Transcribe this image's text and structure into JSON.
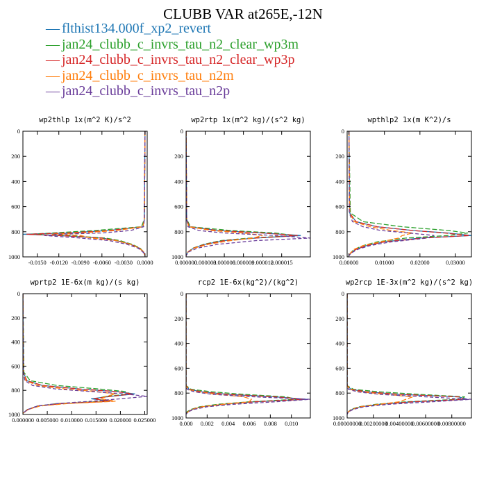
{
  "title": "CLUBB VAR at265E,-12N",
  "legend": [
    {
      "label": "flthist134.000f_xp2_revert",
      "color": "#1f77b4"
    },
    {
      "label": "jan24_clubb_c_invrs_tau_n2_clear_wp3m",
      "color": "#2ca02c"
    },
    {
      "label": "jan24_clubb_c_invrs_tau_n2_clear_wp3p",
      "color": "#d62728"
    },
    {
      "label": "jan24_clubb_c_invrs_tau_n2m",
      "color": "#ff7f0e"
    },
    {
      "label": "jan24_clubb_c_invrs_tau_n2p",
      "color": "#6a3d9a"
    }
  ],
  "chart_data": [
    {
      "type": "line",
      "title": "wp2thlp  1x(m^2 K)/s^2",
      "xlim": [
        -0.017,
        0.0003
      ],
      "ylim": [
        0,
        1000
      ],
      "xticks": [
        -0.015,
        -0.012,
        -0.009,
        -0.006,
        -0.003,
        0.0
      ],
      "xtick_labels": [
        "-0.0150",
        "-0.0120",
        "-0.0090",
        "-0.0060",
        "-0.0030",
        "0.0000"
      ],
      "yticks": [
        0,
        200,
        400,
        600,
        800,
        1000
      ],
      "ytick_labels": [
        "0",
        "200",
        "400",
        "600",
        "800",
        "1000"
      ],
      "y": [
        0,
        700,
        760,
        790,
        810,
        820,
        830,
        850,
        870,
        900,
        930,
        960,
        990
      ],
      "series": [
        {
          "values": [
            0,
            -0.0001,
            -0.0003,
            -0.005,
            -0.011,
            -0.017,
            -0.012,
            -0.006,
            -0.004,
            -0.002,
            -0.0008,
            -0.0002,
            0
          ]
        },
        {
          "values": [
            0,
            -0.0001,
            -0.0005,
            -0.007,
            -0.013,
            -0.016,
            -0.011,
            -0.0055,
            -0.0035,
            -0.0018,
            -0.0007,
            -0.0002,
            0
          ]
        },
        {
          "values": [
            0,
            -0.0001,
            -0.0003,
            -0.005,
            -0.011,
            -0.0165,
            -0.012,
            -0.006,
            -0.004,
            -0.002,
            -0.0008,
            -0.0002,
            0
          ]
        },
        {
          "values": [
            0,
            -0.0001,
            -0.0003,
            -0.004,
            -0.009,
            -0.013,
            -0.009,
            -0.0075,
            -0.004,
            -0.002,
            -0.0008,
            -0.0002,
            0
          ]
        },
        {
          "values": [
            0,
            -0.0001,
            -0.0002,
            -0.002,
            -0.006,
            -0.012,
            -0.014,
            -0.009,
            -0.005,
            -0.0025,
            -0.001,
            -0.0003,
            0
          ]
        }
      ]
    },
    {
      "type": "line",
      "title": "wp2rtp  1x(m^2 kg)/(s^2 kg)",
      "xlim": [
        0,
        1.95e-05
      ],
      "ylim": [
        0,
        1000
      ],
      "xticks": [
        0,
        3e-06,
        6e-06,
        9e-06,
        1.2e-05,
        1.5e-05
      ],
      "xtick_labels": [
        "0.000000",
        "0.000003",
        "0.000006",
        "0.000009",
        "0.000012",
        "0.000015"
      ],
      "yticks": [
        0,
        200,
        400,
        600,
        800,
        1000
      ],
      "ytick_labels": [
        "0",
        "200",
        "400",
        "600",
        "800",
        "1000"
      ],
      "y": [
        0,
        700,
        760,
        790,
        810,
        830,
        850,
        870,
        900,
        930,
        960,
        990
      ],
      "series": [
        {
          "values": [
            0,
            1e-07,
            5e-07,
            5e-06,
            1.2e-05,
            1.8e-05,
            1.1e-05,
            6e-06,
            3e-06,
            1.2e-06,
            3e-07,
            0
          ]
        },
        {
          "values": [
            0,
            1e-07,
            7e-07,
            7e-06,
            1.4e-05,
            1.7e-05,
            1e-05,
            5.5e-06,
            2.8e-06,
            1.1e-06,
            3e-07,
            0
          ]
        },
        {
          "values": [
            0,
            1e-07,
            5e-07,
            5e-06,
            1.2e-05,
            1.75e-05,
            1.1e-05,
            6e-06,
            3e-06,
            1.2e-06,
            3e-07,
            0
          ]
        },
        {
          "values": [
            0,
            1e-07,
            4e-07,
            4e-06,
            9e-06,
            1.2e-05,
            1.05e-05,
            7e-06,
            3.5e-06,
            1.3e-06,
            3e-07,
            0
          ]
        },
        {
          "values": [
            0,
            1e-07,
            3e-07,
            2e-06,
            6e-06,
            1.4e-05,
            1.95e-05,
            1.1e-05,
            5e-06,
            1.8e-06,
            4e-07,
            0
          ]
        }
      ]
    },
    {
      "type": "line",
      "title": "wpthlp2  1x(m K^2)/s",
      "xlim": [
        -0.0005,
        0.0345
      ],
      "ylim": [
        0,
        1000
      ],
      "xticks": [
        0.0,
        0.01,
        0.02,
        0.03
      ],
      "xtick_labels": [
        "0.00000",
        "0.01000",
        "0.02000",
        "0.03000"
      ],
      "yticks": [
        0,
        200,
        400,
        600,
        800,
        1000
      ],
      "ytick_labels": [
        "0",
        "200",
        "400",
        "600",
        "800",
        "1000"
      ],
      "y": [
        0,
        650,
        720,
        760,
        790,
        810,
        830,
        850,
        880,
        910,
        940,
        970,
        990
      ],
      "series": [
        {
          "values": [
            0,
            0.0002,
            0.002,
            0.008,
            0.018,
            0.028,
            0.0345,
            0.02,
            0.01,
            0.005,
            0.002,
            0.0005,
            0
          ]
        },
        {
          "values": [
            0,
            0.0004,
            0.004,
            0.015,
            0.028,
            0.0335,
            0.028,
            0.016,
            0.008,
            0.004,
            0.0015,
            0.0004,
            0
          ]
        },
        {
          "values": [
            0,
            0.0002,
            0.002,
            0.008,
            0.018,
            0.027,
            0.034,
            0.021,
            0.01,
            0.005,
            0.002,
            0.0005,
            0
          ]
        },
        {
          "values": [
            0,
            0.0002,
            0.0015,
            0.006,
            0.012,
            0.018,
            0.015,
            0.014,
            0.009,
            0.004,
            0.0015,
            0.0004,
            0
          ]
        },
        {
          "values": [
            0,
            0.0001,
            0.001,
            0.004,
            0.009,
            0.017,
            0.024,
            0.022,
            0.012,
            0.006,
            0.0025,
            0.0006,
            0
          ]
        }
      ]
    },
    {
      "type": "line",
      "title": "wprtp2  1E-6x(m kg)/(s kg)",
      "xlim": [
        0,
        0.0255
      ],
      "ylim": [
        0,
        1000
      ],
      "xticks": [
        0,
        0.005,
        0.01,
        0.015,
        0.02,
        0.025
      ],
      "xtick_labels": [
        "0.000000",
        "0.005000",
        "0.010000",
        "0.015000",
        "0.020000",
        "0.025000"
      ],
      "yticks": [
        0,
        200,
        400,
        600,
        800,
        1000
      ],
      "ytick_labels": [
        "0",
        "200",
        "400",
        "600",
        "800",
        "1000"
      ],
      "y": [
        0,
        650,
        720,
        760,
        790,
        810,
        830,
        850,
        870,
        890,
        910,
        930,
        960,
        990
      ],
      "series": [
        {
          "values": [
            0,
            0.0001,
            0.0008,
            0.004,
            0.012,
            0.019,
            0.023,
            0.018,
            0.014,
            0.018,
            0.008,
            0.003,
            0.001,
            0
          ]
        },
        {
          "values": [
            0,
            0.0002,
            0.0015,
            0.007,
            0.016,
            0.021,
            0.022,
            0.017,
            0.015,
            0.017,
            0.007,
            0.003,
            0.0009,
            0
          ]
        },
        {
          "values": [
            0,
            0.0001,
            0.0008,
            0.004,
            0.012,
            0.019,
            0.0225,
            0.018,
            0.0145,
            0.018,
            0.008,
            0.003,
            0.001,
            0
          ]
        },
        {
          "values": [
            0,
            0.0001,
            0.0006,
            0.003,
            0.009,
            0.015,
            0.019,
            0.017,
            0.016,
            0.019,
            0.009,
            0.0035,
            0.001,
            0
          ]
        },
        {
          "values": [
            0,
            0.0001,
            0.0004,
            0.002,
            0.007,
            0.014,
            0.021,
            0.0255,
            0.02,
            0.014,
            0.007,
            0.003,
            0.0009,
            0
          ]
        }
      ]
    },
    {
      "type": "line",
      "title": "rcp2  1E-6x(kg^2)/(kg^2)",
      "xlim": [
        0,
        0.0118
      ],
      "ylim": [
        0,
        1000
      ],
      "xticks": [
        0,
        0.002,
        0.004,
        0.006,
        0.008,
        0.01
      ],
      "xtick_labels": [
        "0.000",
        "0.002",
        "0.004",
        "0.006",
        "0.008",
        "0.010"
      ],
      "yticks": [
        0,
        200,
        400,
        600,
        800,
        1000
      ],
      "ytick_labels": [
        "0",
        "200",
        "400",
        "600",
        "800",
        "1000"
      ],
      "y": [
        0,
        740,
        770,
        790,
        810,
        830,
        850,
        870,
        890,
        910,
        930,
        950,
        970
      ],
      "series": [
        {
          "values": [
            0,
            0,
            0.0003,
            0.0015,
            0.004,
            0.0085,
            0.0115,
            0.0065,
            0.0035,
            0.0015,
            0.0006,
            0.0002,
            0
          ]
        },
        {
          "values": [
            0,
            0,
            0.0005,
            0.0025,
            0.0055,
            0.0095,
            0.0105,
            0.006,
            0.003,
            0.0013,
            0.0005,
            0.0001,
            0
          ]
        },
        {
          "values": [
            0,
            0,
            0.0003,
            0.0015,
            0.004,
            0.0085,
            0.0112,
            0.0065,
            0.0035,
            0.0015,
            0.0006,
            0.0002,
            0
          ]
        },
        {
          "values": [
            0,
            0,
            0.0002,
            0.001,
            0.003,
            0.0055,
            0.0062,
            0.006,
            0.0035,
            0.0015,
            0.0006,
            0.0002,
            0
          ]
        },
        {
          "values": [
            0,
            0,
            0.0001,
            0.0008,
            0.0025,
            0.0065,
            0.0118,
            0.0085,
            0.0045,
            0.002,
            0.0008,
            0.0002,
            0
          ]
        }
      ]
    },
    {
      "type": "line",
      "title": "wp2rcp  1E-3x(m^2 kg)/(s^2 kg)",
      "xlim": [
        0,
        0.0095
      ],
      "ylim": [
        0,
        1000
      ],
      "xticks": [
        0,
        0.002,
        0.004,
        0.006,
        0.008
      ],
      "xtick_labels": [
        "0.00000000",
        "0.00200000",
        "0.00400000",
        "0.00600000",
        "0.00800000"
      ],
      "yticks": [
        0,
        200,
        400,
        600,
        800,
        1000
      ],
      "ytick_labels": [
        "0",
        "200",
        "400",
        "600",
        "800",
        "1000"
      ],
      "y": [
        0,
        740,
        770,
        790,
        810,
        830,
        850,
        870,
        890,
        910,
        930,
        950,
        970
      ],
      "series": [
        {
          "values": [
            0,
            0,
            0.0003,
            0.0015,
            0.004,
            0.0085,
            0.0092,
            0.005,
            0.0025,
            0.001,
            0.0004,
            0.0001,
            0
          ]
        },
        {
          "values": [
            0,
            0,
            0.0005,
            0.0025,
            0.0055,
            0.009,
            0.0085,
            0.0045,
            0.0022,
            0.0009,
            0.0003,
            0.0001,
            0
          ]
        },
        {
          "values": [
            0,
            0,
            0.0003,
            0.0015,
            0.004,
            0.0085,
            0.009,
            0.005,
            0.0025,
            0.001,
            0.0004,
            0.0001,
            0
          ]
        },
        {
          "values": [
            0,
            0,
            0.0002,
            0.001,
            0.003,
            0.005,
            0.0045,
            0.004,
            0.0025,
            0.001,
            0.0004,
            0.0001,
            0
          ]
        },
        {
          "values": [
            0,
            0,
            0.0001,
            0.0008,
            0.0025,
            0.006,
            0.0095,
            0.0065,
            0.0032,
            0.0013,
            0.0005,
            0.0001,
            0
          ]
        }
      ]
    }
  ]
}
